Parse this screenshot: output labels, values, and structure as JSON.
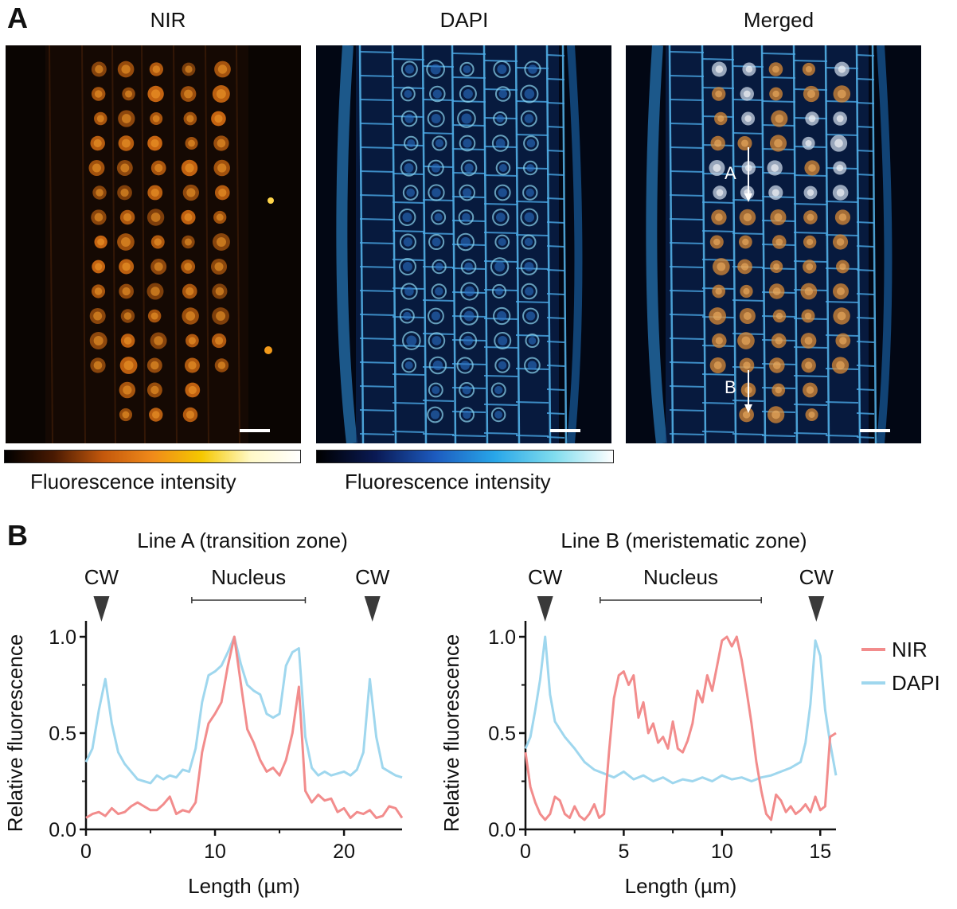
{
  "panel_a": {
    "letter": "A",
    "titles": [
      "NIR",
      "DAPI",
      "Merged"
    ],
    "colorbar_labels": [
      "Fluorescence intensity",
      "Fluorescence intensity"
    ],
    "line_markers": [
      "A",
      "B"
    ],
    "colors": {
      "nir_cmap": [
        "#000000",
        "#4a1a02",
        "#c4580c",
        "#f08a1a",
        "#f5c800",
        "#fff9c8",
        "#ffffff"
      ],
      "dapi_cmap": [
        "#000000",
        "#0a1a55",
        "#1d5bbf",
        "#28a6e8",
        "#7fdcee",
        "#ffffff"
      ]
    }
  },
  "panel_b": {
    "letter": "B",
    "legend": [
      {
        "label": "NIR",
        "color": "#f28c8c"
      },
      {
        "label": "DAPI",
        "color": "#9fd7ee"
      }
    ]
  },
  "chart_data": [
    {
      "type": "line",
      "title": "Line A (transition zone)",
      "xlabel": "Length (µm)",
      "ylabel": "Relative fluorescence",
      "xlim": [
        0,
        24.5
      ],
      "ylim": [
        0,
        1.0
      ],
      "xticks": [
        0,
        10,
        20
      ],
      "yticks": [
        "0.0",
        "0.5",
        "1.0"
      ],
      "annotations": [
        {
          "label": "CW",
          "type": "arrow",
          "x": 1.2
        },
        {
          "label": "Nucleus",
          "type": "range",
          "x": [
            8.2,
            17.0
          ]
        },
        {
          "label": "CW",
          "type": "arrow",
          "x": 22.2
        }
      ],
      "series": [
        {
          "name": "NIR",
          "color": "#f28c8c",
          "x": [
            0,
            0.5,
            1,
            1.5,
            2,
            2.5,
            3,
            3.5,
            4,
            4.5,
            5,
            5.5,
            6,
            6.5,
            7,
            7.5,
            8,
            8.5,
            9,
            9.5,
            10,
            10.5,
            11,
            11.5,
            12,
            12.5,
            13,
            13.5,
            14,
            14.5,
            15,
            15.5,
            16,
            16.5,
            17,
            17.5,
            18,
            18.5,
            19,
            19.5,
            20,
            20.5,
            21,
            21.5,
            22,
            22.5,
            23,
            23.5,
            24,
            24.5
          ],
          "y": [
            0.06,
            0.08,
            0.09,
            0.07,
            0.11,
            0.08,
            0.09,
            0.12,
            0.14,
            0.12,
            0.1,
            0.1,
            0.13,
            0.17,
            0.08,
            0.1,
            0.09,
            0.14,
            0.4,
            0.55,
            0.6,
            0.66,
            0.85,
            1.0,
            0.76,
            0.52,
            0.45,
            0.36,
            0.3,
            0.32,
            0.28,
            0.36,
            0.5,
            0.74,
            0.2,
            0.14,
            0.18,
            0.15,
            0.16,
            0.09,
            0.11,
            0.06,
            0.09,
            0.08,
            0.1,
            0.06,
            0.07,
            0.12,
            0.11,
            0.06
          ]
        },
        {
          "name": "DAPI",
          "color": "#9fd7ee",
          "x": [
            0,
            0.5,
            1,
            1.5,
            2,
            2.5,
            3,
            3.5,
            4,
            4.5,
            5,
            5.5,
            6,
            6.5,
            7,
            7.5,
            8,
            8.5,
            9,
            9.5,
            10,
            10.5,
            11,
            11.5,
            12,
            12.5,
            13,
            13.5,
            14,
            14.5,
            15,
            15.5,
            16,
            16.5,
            17,
            17.5,
            18,
            18.5,
            19,
            19.5,
            20,
            20.5,
            21,
            21.5,
            22,
            22.5,
            23,
            23.5,
            24,
            24.5
          ],
          "y": [
            0.35,
            0.42,
            0.62,
            0.78,
            0.55,
            0.4,
            0.34,
            0.3,
            0.26,
            0.25,
            0.24,
            0.28,
            0.26,
            0.28,
            0.27,
            0.31,
            0.3,
            0.42,
            0.66,
            0.8,
            0.82,
            0.85,
            0.92,
            1.0,
            0.86,
            0.75,
            0.72,
            0.7,
            0.6,
            0.58,
            0.6,
            0.85,
            0.92,
            0.94,
            0.48,
            0.32,
            0.28,
            0.3,
            0.28,
            0.29,
            0.3,
            0.28,
            0.31,
            0.4,
            0.78,
            0.48,
            0.32,
            0.3,
            0.28,
            0.27
          ]
        }
      ]
    },
    {
      "type": "line",
      "title": "Line B (meristematic zone)",
      "xlabel": "Length (µm)",
      "ylabel": "Relative fluorescence",
      "xlim": [
        0,
        15.8
      ],
      "ylim": [
        0,
        1.0
      ],
      "xticks": [
        0,
        5,
        10,
        15
      ],
      "yticks": [
        "0.0",
        "0.5",
        "1.0"
      ],
      "annotations": [
        {
          "label": "CW",
          "type": "arrow",
          "x": 1.0
        },
        {
          "label": "Nucleus",
          "type": "range",
          "x": [
            3.8,
            12.0
          ]
        },
        {
          "label": "CW",
          "type": "arrow",
          "x": 14.8
        }
      ],
      "series": [
        {
          "name": "NIR",
          "color": "#f28c8c",
          "x": [
            0,
            0.25,
            0.5,
            0.75,
            1,
            1.25,
            1.5,
            1.75,
            2,
            2.25,
            2.5,
            2.75,
            3,
            3.25,
            3.5,
            3.75,
            4,
            4.25,
            4.5,
            4.75,
            5,
            5.25,
            5.5,
            5.75,
            6,
            6.25,
            6.5,
            6.75,
            7,
            7.25,
            7.5,
            7.75,
            8,
            8.25,
            8.5,
            8.75,
            9,
            9.25,
            9.5,
            9.75,
            10,
            10.25,
            10.5,
            10.75,
            11,
            11.25,
            11.5,
            11.75,
            12,
            12.25,
            12.5,
            12.75,
            13,
            13.25,
            13.5,
            13.75,
            14,
            14.25,
            14.5,
            14.75,
            15,
            15.25,
            15.5,
            15.8
          ],
          "y": [
            0.4,
            0.22,
            0.14,
            0.08,
            0.05,
            0.08,
            0.17,
            0.15,
            0.08,
            0.06,
            0.12,
            0.07,
            0.05,
            0.08,
            0.13,
            0.06,
            0.08,
            0.4,
            0.68,
            0.8,
            0.82,
            0.75,
            0.8,
            0.58,
            0.66,
            0.5,
            0.55,
            0.45,
            0.48,
            0.42,
            0.56,
            0.42,
            0.4,
            0.46,
            0.55,
            0.72,
            0.66,
            0.8,
            0.72,
            0.85,
            0.98,
            1.0,
            0.95,
            1.0,
            0.88,
            0.72,
            0.55,
            0.35,
            0.2,
            0.08,
            0.05,
            0.18,
            0.15,
            0.09,
            0.12,
            0.08,
            0.1,
            0.13,
            0.09,
            0.17,
            0.1,
            0.12,
            0.48,
            0.5
          ]
        },
        {
          "name": "DAPI",
          "color": "#9fd7ee",
          "x": [
            0,
            0.25,
            0.5,
            0.75,
            1,
            1.25,
            1.5,
            1.75,
            2,
            2.5,
            3,
            3.5,
            4,
            4.5,
            5,
            5.5,
            6,
            6.5,
            7,
            7.5,
            8,
            8.5,
            9,
            9.5,
            10,
            10.5,
            11,
            11.5,
            12,
            12.5,
            13,
            13.5,
            14,
            14.25,
            14.5,
            14.75,
            15,
            15.25,
            15.5,
            15.8
          ],
          "y": [
            0.42,
            0.48,
            0.62,
            0.78,
            1.0,
            0.7,
            0.56,
            0.52,
            0.48,
            0.42,
            0.35,
            0.31,
            0.29,
            0.27,
            0.3,
            0.26,
            0.28,
            0.25,
            0.27,
            0.24,
            0.26,
            0.25,
            0.27,
            0.25,
            0.28,
            0.26,
            0.27,
            0.25,
            0.27,
            0.28,
            0.3,
            0.32,
            0.35,
            0.45,
            0.65,
            0.98,
            0.9,
            0.62,
            0.45,
            0.28
          ]
        }
      ]
    }
  ]
}
